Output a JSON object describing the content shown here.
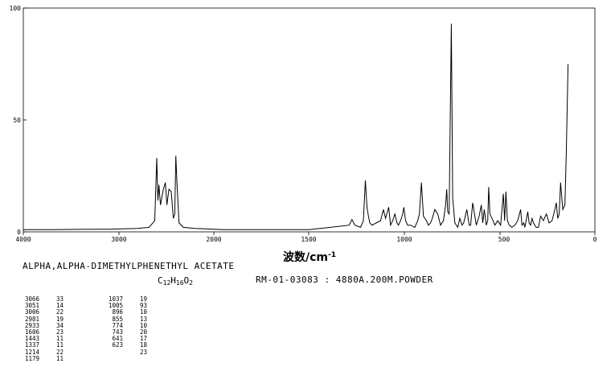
{
  "compound_name": "ALPHA,ALPHA-DIMETHYLPHENETHYL ACETATE",
  "formula": {
    "c": "C",
    "c_n": "12",
    "h": "H",
    "h_n": "16",
    "o": "O",
    "o_n": "2"
  },
  "reference": "RM-01-03083 : 4880A.200M.POWDER",
  "chart_data": {
    "type": "line",
    "xlabel": "波数/cm",
    "xlabel_sup": "-1",
    "xlim": [
      4000,
      0
    ],
    "ylim": [
      0,
      100
    ],
    "x_ticks": [
      "4000",
      "3000",
      "2000",
      "1500",
      "1000",
      "500",
      "0"
    ],
    "y_ticks": [
      "100",
      "50",
      "0"
    ],
    "series": [
      {
        "x": [
          4000,
          3800,
          3600,
          3400,
          3200,
          3120,
          3080,
          3066,
          3058,
          3051,
          3040,
          3020,
          3006,
          2995,
          2981,
          2965,
          2950,
          2940,
          2933,
          2925,
          2910,
          2880,
          2800,
          2600,
          2400,
          2200,
          2000,
          1850,
          1720,
          1700,
          1680,
          1640,
          1620,
          1606,
          1595,
          1585,
          1575,
          1560,
          1500,
          1480,
          1465,
          1443,
          1430,
          1415,
          1400,
          1385,
          1375,
          1360,
          1345,
          1337,
          1325,
          1310,
          1290,
          1260,
          1240,
          1228,
          1214,
          1200,
          1179,
          1165,
          1150,
          1138,
          1120,
          1100,
          1080,
          1060,
          1045,
          1037,
          1030,
          1020,
          1005,
          995,
          980,
          960,
          945,
          930,
          918,
          896,
          880,
          870,
          855,
          845,
          830,
          820,
          810,
          795,
          785,
          774,
          760,
          750,
          743,
          735,
          720,
          700,
          680,
          660,
          641,
          632,
          623,
          612,
          600,
          580,
          560,
          540,
          520,
          510,
          498,
          490,
          470,
          460,
          450,
          440,
          430,
          420,
          410,
          395,
          380,
          360,
          340,
          320,
          300,
          280,
          270,
          260,
          250,
          240,
          225,
          210,
          200,
          188
        ],
        "y": [
          1,
          1,
          1.1,
          1.2,
          1.5,
          2,
          5,
          33,
          14,
          21,
          12,
          19,
          22,
          12,
          19,
          18,
          6,
          8,
          34,
          22,
          4,
          2,
          1.5,
          1,
          1,
          1,
          1,
          2,
          3,
          5.5,
          3,
          2,
          5,
          23,
          11,
          7,
          4,
          3,
          5,
          10,
          6,
          11,
          3,
          5,
          8,
          4,
          3,
          5,
          8,
          11,
          5,
          3,
          3,
          2,
          5,
          8,
          22,
          7,
          5,
          3,
          4,
          6,
          10,
          8,
          3,
          5,
          12,
          19,
          9,
          8,
          93,
          15,
          4,
          2,
          6,
          3,
          4,
          10,
          3,
          3,
          13,
          9,
          3,
          5,
          7,
          12,
          4,
          10,
          3,
          5,
          20,
          8,
          6,
          3,
          5,
          3,
          17,
          5,
          18,
          5,
          3,
          2,
          3,
          5,
          10,
          3,
          4,
          2,
          9,
          4,
          3,
          6,
          4,
          3,
          2,
          2,
          7,
          5,
          8,
          4,
          5,
          10,
          13,
          6,
          8,
          22,
          10,
          12,
          35,
          75
        ]
      }
    ]
  }
}
